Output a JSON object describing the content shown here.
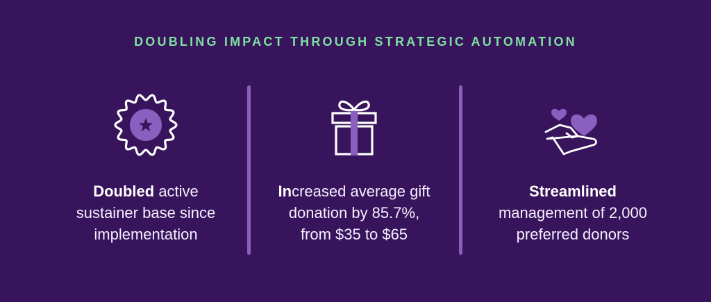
{
  "header": {
    "title": "DOUBLING IMPACT THROUGH STRATEGIC AUTOMATION"
  },
  "colors": {
    "background": "#38145c",
    "title": "#7ee0a1",
    "accent_purple": "#8a5fbf",
    "text": "#ffffff"
  },
  "stats": [
    {
      "icon": "award-badge-star-icon",
      "bold": "Doubled",
      "line1_rest": " active",
      "line2": "sustainer base since",
      "line3": "implementation"
    },
    {
      "icon": "gift-box-icon",
      "bold": "In",
      "line1_rest": "creased average gift",
      "line2": "donation by 85.7%,",
      "line3": "from $35 to $65"
    },
    {
      "icon": "hand-with-hearts-icon",
      "bold": "Streamlined",
      "line1_rest": "",
      "line2": "management of 2,000",
      "line3": "preferred donors"
    }
  ]
}
